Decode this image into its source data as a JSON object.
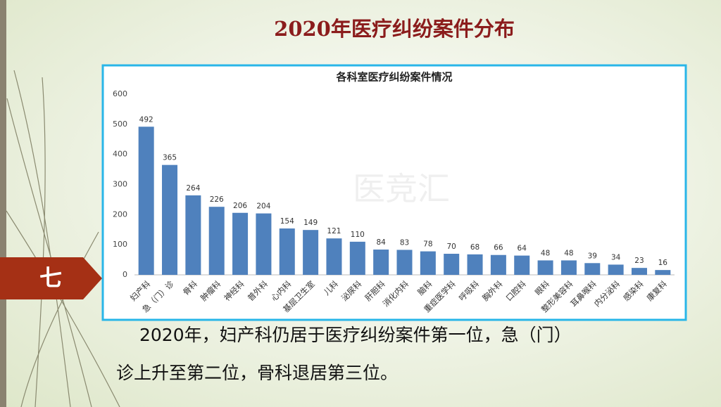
{
  "slide_title": "2020年医疗纠纷案件分布",
  "section": "七",
  "watermark": "医竞汇",
  "body": [
    "2020年，妇产科仍居于医疗纠纷案件第一位，急（门）",
    "诊上升至第二位，骨科退居第三位。"
  ],
  "chart_data": {
    "type": "bar",
    "title": "各科室医疗纠纷案件情况",
    "categories": [
      "妇产科",
      "急（门）诊",
      "骨科",
      "肿瘤科",
      "神经科",
      "普外科",
      "心内科",
      "基层卫生室",
      "儿科",
      "泌尿科",
      "肝胆科",
      "消化内科",
      "脑科",
      "重症医学科",
      "呼吸科",
      "胸外科",
      "口腔科",
      "眼科",
      "整形美容科",
      "耳鼻喉科",
      "内分泌科",
      "感染科",
      "康复科"
    ],
    "values": [
      492,
      365,
      264,
      226,
      206,
      204,
      154,
      149,
      121,
      110,
      84,
      83,
      78,
      70,
      68,
      66,
      64,
      48,
      48,
      39,
      34,
      23,
      16
    ],
    "color": "#4f81bd",
    "ylim": [
      0,
      600
    ],
    "yticks": [
      0,
      100,
      200,
      300,
      400,
      500,
      600
    ],
    "grid": false
  }
}
